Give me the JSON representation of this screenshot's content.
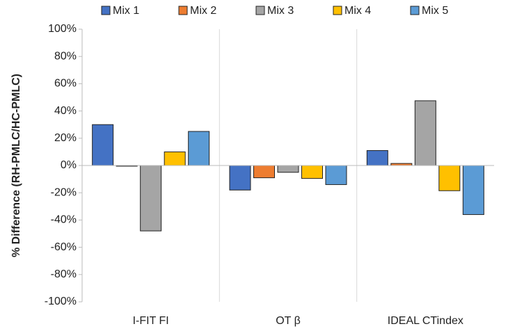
{
  "chart_data": {
    "type": "bar",
    "y_label": "% Difference (RH-PMLC/HC-PMLC)",
    "categories": [
      "I-FIT FI",
      "OT β",
      "IDEAL CTindex"
    ],
    "series": [
      {
        "name": "Mix 1",
        "color": "#4472c4",
        "values": [
          30,
          -18,
          11
        ]
      },
      {
        "name": "Mix 2",
        "color": "#ed7d31",
        "values": [
          -0.5,
          -9,
          1.5
        ]
      },
      {
        "name": "Mix 3",
        "color": "#a5a5a5",
        "values": [
          -48,
          -5,
          47.5
        ]
      },
      {
        "name": "Mix 4",
        "color": "#ffc000",
        "values": [
          10,
          -9.5,
          -18.5
        ]
      },
      {
        "name": "Mix 5",
        "color": "#5b9bd5",
        "values": [
          25,
          -14,
          -36
        ]
      }
    ],
    "ylim": [
      -100,
      100
    ],
    "yticks": [
      {
        "value": -100,
        "label": "-100%"
      },
      {
        "value": -80,
        "label": "-80%"
      },
      {
        "value": -60,
        "label": "-60%"
      },
      {
        "value": -40,
        "label": "-40%"
      },
      {
        "value": -20,
        "label": "-20%"
      },
      {
        "value": 0,
        "label": "0%"
      },
      {
        "value": 20,
        "label": "20%"
      },
      {
        "value": 40,
        "label": "40%"
      },
      {
        "value": 60,
        "label": "60%"
      },
      {
        "value": 80,
        "label": "80%"
      },
      {
        "value": 100,
        "label": "100%"
      }
    ],
    "grid": false,
    "legend": "top"
  }
}
